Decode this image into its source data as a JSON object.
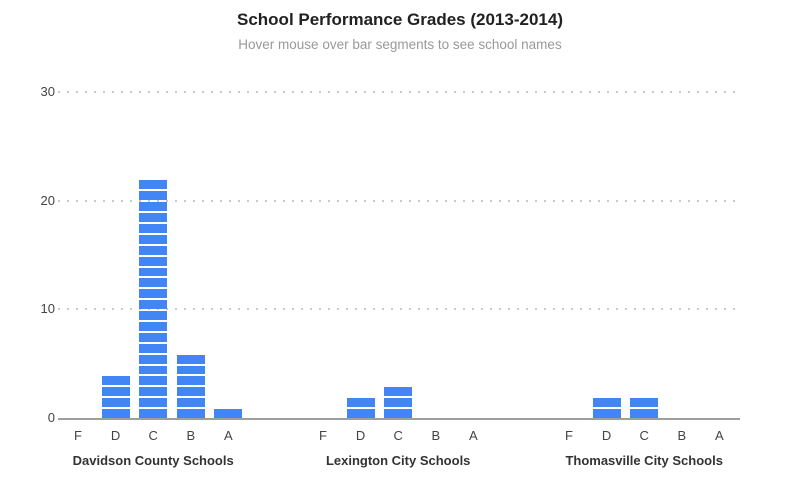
{
  "chart_data": {
    "type": "bar",
    "title": "School Performance Grades (2013-2014)",
    "subtitle": "Hover mouse over bar segments to see school names",
    "categories": [
      "F",
      "D",
      "C",
      "B",
      "A"
    ],
    "series": [
      {
        "name": "Davidson County Schools",
        "values": [
          0,
          4,
          22,
          6,
          1
        ]
      },
      {
        "name": "Lexington City Schools",
        "values": [
          0,
          2,
          3,
          0,
          0
        ]
      },
      {
        "name": "Thomasville City Schools",
        "values": [
          0,
          2,
          2,
          0,
          0
        ]
      }
    ],
    "xlabel": "",
    "ylabel": "",
    "ylim": [
      0,
      30
    ],
    "yticks": [
      0,
      10,
      20,
      30
    ],
    "grid": "horizontal-dotted",
    "legend": "none",
    "stacked_unit_segments": true,
    "colors": {
      "bar": "#4285f4",
      "segment_divider": "#ffffff",
      "title": "#212121",
      "subtitle": "#999999",
      "axis_line": "#9e9e9e",
      "gridline": "#c9c9c9",
      "tick_label": "#444444",
      "group_label": "#333333"
    }
  }
}
